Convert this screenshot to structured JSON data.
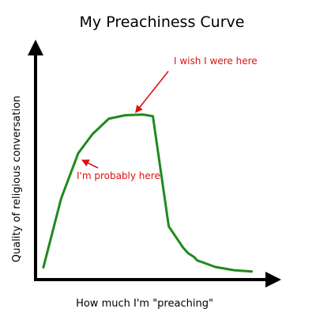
{
  "chart_data": {
    "type": "line",
    "title": "My Preachiness Curve",
    "xlabel": "How much I'm \"preaching\"",
    "ylabel": "Quality of religious conversation",
    "xlim": [
      0,
      100
    ],
    "ylim": [
      0,
      100
    ],
    "grid": false,
    "legend": "none",
    "series": [
      {
        "name": "preachiness-curve",
        "color": "#1e8a1e",
        "x": [
          3.3,
          10.8,
          18.0,
          24.0,
          30.9,
          37.8,
          45.3,
          49.5,
          56.2,
          62.3,
          64.3,
          66.9,
          68.2,
          70.8,
          75.8,
          83.7,
          91.2
        ],
        "y": [
          5.3,
          35.2,
          54.8,
          63.1,
          69.8,
          71.3,
          71.6,
          70.9,
          23.1,
          13.8,
          11.5,
          9.8,
          8.3,
          7.4,
          5.5,
          4.1,
          3.5
        ]
      }
    ],
    "annotations": [
      {
        "name": "wish-annotation",
        "text": "I wish I were here",
        "color": "#dd1111",
        "target": [
          41.5,
          71.6
        ]
      },
      {
        "name": "probably-annotation",
        "text": "I'm probably here",
        "color": "#dd1111",
        "target": [
          18.6,
          52.4
        ]
      }
    ]
  }
}
